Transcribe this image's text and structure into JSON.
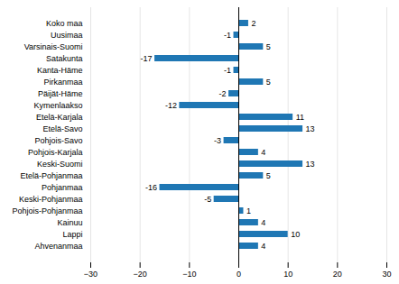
{
  "chart_data": {
    "type": "bar",
    "orientation": "horizontal",
    "categories": [
      "Koko maa",
      "Uusimaa",
      "Varsinais-Suomi",
      "Satakunta",
      "Kanta-Häme",
      "Pirkanmaa",
      "Päijät-Häme",
      "Kymenlaakso",
      "Etelä-Karjala",
      "Etelä-Savo",
      "Pohjois-Savo",
      "Pohjois-Karjala",
      "Keski-Suomi",
      "Etelä-Pohjanmaa",
      "Pohjanmaa",
      "Keski-Pohjanmaa",
      "Pohjois-Pohjanmaa",
      "Kainuu",
      "Lappi",
      "Ahvenanmaa"
    ],
    "values": [
      2,
      -1,
      5,
      -17,
      -1,
      5,
      -2,
      -12,
      11,
      13,
      -3,
      4,
      13,
      5,
      -16,
      -5,
      1,
      4,
      10,
      4
    ],
    "color": "#1f77b4",
    "xlim": [
      -30,
      30
    ],
    "xticks": [
      -30,
      -20,
      -10,
      0,
      10,
      20,
      30
    ],
    "grid": true,
    "data_labels": true
  }
}
